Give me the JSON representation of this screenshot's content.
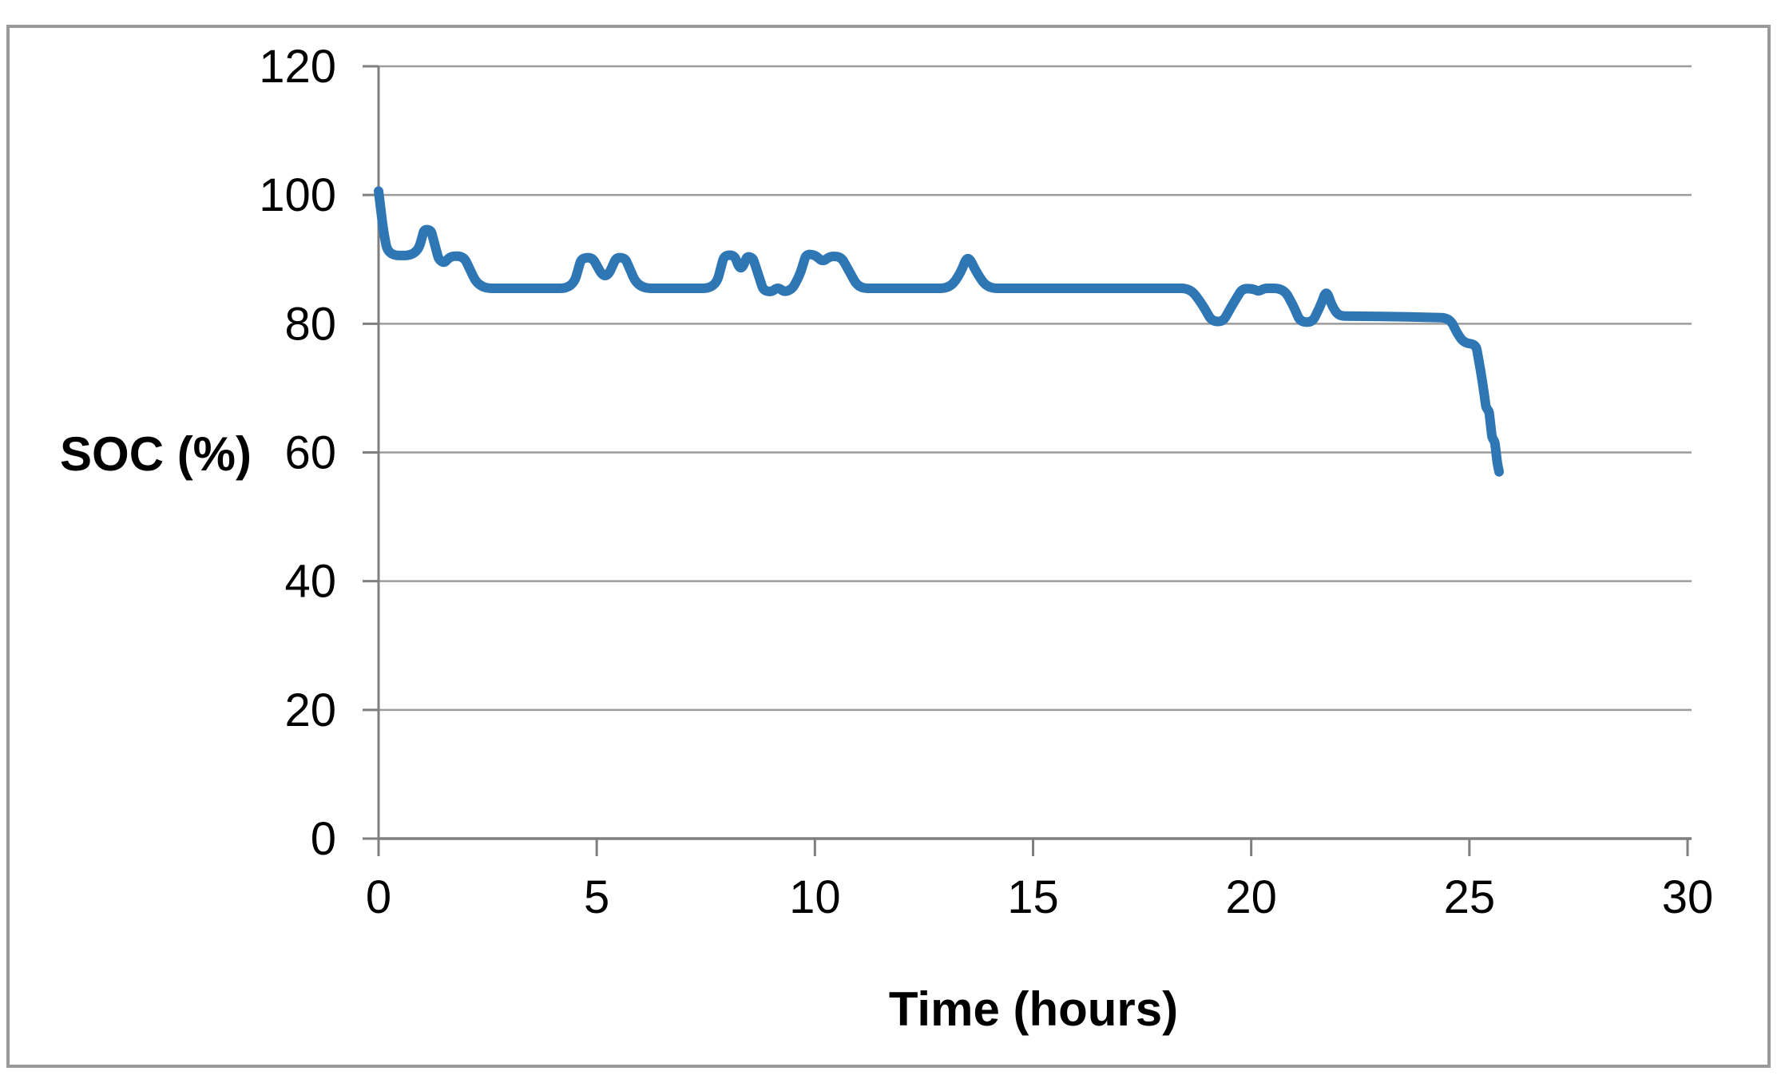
{
  "colors": {
    "line": "#2F76B4",
    "gridline": "#9C9C9C",
    "axis": "#7F7F7F",
    "frame_border": "#9A9A9A",
    "text": "#000000",
    "background": "#FFFFFF"
  },
  "chart_data": {
    "type": "line",
    "xlabel": "Time (hours)",
    "ylabel": "SOC (%)",
    "xlim": [
      0,
      30
    ],
    "ylim": [
      0,
      120
    ],
    "x_ticks": [
      0,
      5,
      10,
      15,
      20,
      25,
      30
    ],
    "y_ticks": [
      0,
      20,
      40,
      60,
      80,
      100,
      120
    ],
    "grid": "horizontal",
    "legend": "none",
    "line_width": 12,
    "series": [
      {
        "name": "SOC",
        "points": [
          [
            0.0,
            100.6
          ],
          [
            0.12,
            94.0
          ],
          [
            0.22,
            90.6
          ],
          [
            0.88,
            90.6
          ],
          [
            1.05,
            94.7
          ],
          [
            1.2,
            94.5
          ],
          [
            1.38,
            90.0
          ],
          [
            1.5,
            89.4
          ],
          [
            1.65,
            90.5
          ],
          [
            1.95,
            90.5
          ],
          [
            2.3,
            85.5
          ],
          [
            4.45,
            85.5
          ],
          [
            4.65,
            90.2
          ],
          [
            4.9,
            90.3
          ],
          [
            5.2,
            86.6
          ],
          [
            5.45,
            90.3
          ],
          [
            5.65,
            90.2
          ],
          [
            5.95,
            85.5
          ],
          [
            7.72,
            85.5
          ],
          [
            7.92,
            90.6
          ],
          [
            8.15,
            90.7
          ],
          [
            8.3,
            88.1
          ],
          [
            8.45,
            90.5
          ],
          [
            8.58,
            90.2
          ],
          [
            8.82,
            85.2
          ],
          [
            9.0,
            84.9
          ],
          [
            9.15,
            85.7
          ],
          [
            9.3,
            84.9
          ],
          [
            9.48,
            85.4
          ],
          [
            9.65,
            87.5
          ],
          [
            9.8,
            90.8
          ],
          [
            10.0,
            90.7
          ],
          [
            10.18,
            89.6
          ],
          [
            10.35,
            90.5
          ],
          [
            10.6,
            90.4
          ],
          [
            10.8,
            88.0
          ],
          [
            11.0,
            85.5
          ],
          [
            13.1,
            85.5
          ],
          [
            13.35,
            88.0
          ],
          [
            13.5,
            90.8
          ],
          [
            13.7,
            88.0
          ],
          [
            13.95,
            85.5
          ],
          [
            18.6,
            85.5
          ],
          [
            18.85,
            83.3
          ],
          [
            19.1,
            80.4
          ],
          [
            19.35,
            80.3
          ],
          [
            19.6,
            83.3
          ],
          [
            19.8,
            85.5
          ],
          [
            20.05,
            85.4
          ],
          [
            20.17,
            85.0
          ],
          [
            20.3,
            85.5
          ],
          [
            20.75,
            85.5
          ],
          [
            21.0,
            82.3
          ],
          [
            21.12,
            80.3
          ],
          [
            21.4,
            80.2
          ],
          [
            21.6,
            83.0
          ],
          [
            21.72,
            85.3
          ],
          [
            21.85,
            82.8
          ],
          [
            22.0,
            81.2
          ],
          [
            23.3,
            81.1
          ],
          [
            24.55,
            80.9
          ],
          [
            24.72,
            78.5
          ],
          [
            24.88,
            77.0
          ],
          [
            25.15,
            76.8
          ],
          [
            25.3,
            71.0
          ],
          [
            25.38,
            67.0
          ],
          [
            25.45,
            66.4
          ],
          [
            25.52,
            62.3
          ],
          [
            25.58,
            61.7
          ],
          [
            25.64,
            58.3
          ],
          [
            25.68,
            57.0
          ]
        ]
      }
    ]
  }
}
